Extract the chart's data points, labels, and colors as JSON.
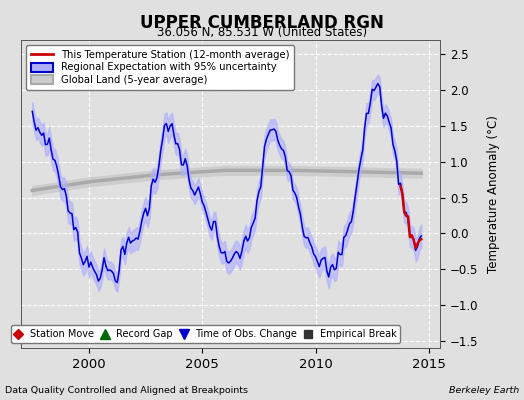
{
  "title": "UPPER CUMBERLAND RGN",
  "subtitle": "36.056 N, 85.531 W (United States)",
  "ylabel": "Temperature Anomaly (°C)",
  "xlabel_left": "Data Quality Controlled and Aligned at Breakpoints",
  "xlabel_right": "Berkeley Earth",
  "ylim": [
    -1.6,
    2.7
  ],
  "yticks": [
    -1.5,
    -1.0,
    -0.5,
    0.0,
    0.5,
    1.0,
    1.5,
    2.0,
    2.5
  ],
  "xlim_start": 1997.0,
  "xlim_end": 2015.5,
  "xticks": [
    2000,
    2005,
    2010,
    2015
  ],
  "background_color": "#e0e0e0",
  "plot_bg_color": "#e0e0e0",
  "grid_color": "#ffffff",
  "line_red_color": "#cc0000",
  "line_blue_color": "#0000cc",
  "shade_blue_color": "#b0b0ff",
  "line_gray_color": "#aaaaaa",
  "shade_gray_color": "#cccccc",
  "blue_ctrl_t": [
    1997.5,
    1998.0,
    1998.3,
    1998.6,
    1999.0,
    1999.3,
    1999.6,
    2000.0,
    2000.4,
    2000.8,
    2001.1,
    2001.4,
    2001.7,
    2002.0,
    2002.4,
    2002.7,
    2003.0,
    2003.3,
    2003.6,
    2003.9,
    2004.2,
    2004.5,
    2004.8,
    2005.1,
    2005.4,
    2005.7,
    2006.0,
    2006.3,
    2006.6,
    2006.9,
    2007.2,
    2007.5,
    2007.8,
    2008.1,
    2008.4,
    2008.7,
    2009.0,
    2009.3,
    2009.5,
    2009.8,
    2010.1,
    2010.4,
    2010.7,
    2011.0,
    2011.3,
    2011.6,
    2011.9,
    2012.2,
    2012.5,
    2012.8,
    2013.1,
    2013.4,
    2013.7,
    2014.0,
    2014.3,
    2014.6
  ],
  "blue_ctrl_v": [
    1.5,
    1.4,
    1.2,
    0.9,
    0.5,
    0.1,
    -0.2,
    -0.4,
    -0.5,
    -0.55,
    -0.55,
    -0.4,
    -0.2,
    -0.1,
    0.2,
    0.5,
    0.9,
    1.5,
    1.4,
    1.2,
    1.0,
    0.7,
    0.5,
    0.3,
    0.1,
    -0.1,
    -0.3,
    -0.4,
    -0.35,
    -0.15,
    0.1,
    0.5,
    1.3,
    1.4,
    1.3,
    1.1,
    0.8,
    0.3,
    0.1,
    -0.1,
    -0.3,
    -0.5,
    -0.6,
    -0.4,
    -0.1,
    0.3,
    0.8,
    1.5,
    2.0,
    2.0,
    1.7,
    1.3,
    0.8,
    0.2,
    -0.05,
    -0.1
  ],
  "gray_ctrl_t": [
    1997.5,
    2000.0,
    2003.0,
    2006.0,
    2009.0,
    2012.0,
    2014.6
  ],
  "gray_ctrl_v": [
    0.6,
    0.72,
    0.82,
    0.88,
    0.88,
    0.86,
    0.84
  ],
  "legend_items": [
    {
      "label": "This Temperature Station (12-month average)",
      "color": "#cc0000",
      "lw": 2
    },
    {
      "label": "Regional Expectation with 95% uncertainty",
      "color": "#0000cc",
      "lw": 2
    },
    {
      "label": "Global Land (5-year average)",
      "color": "#aaaaaa",
      "lw": 3
    }
  ],
  "bottom_legend": [
    {
      "marker": "D",
      "color": "#cc0000",
      "label": "Station Move"
    },
    {
      "marker": "^",
      "color": "#006600",
      "label": "Record Gap"
    },
    {
      "marker": "v",
      "color": "#0000cc",
      "label": "Time of Obs. Change"
    },
    {
      "marker": "s",
      "color": "#333333",
      "label": "Empirical Break"
    }
  ]
}
